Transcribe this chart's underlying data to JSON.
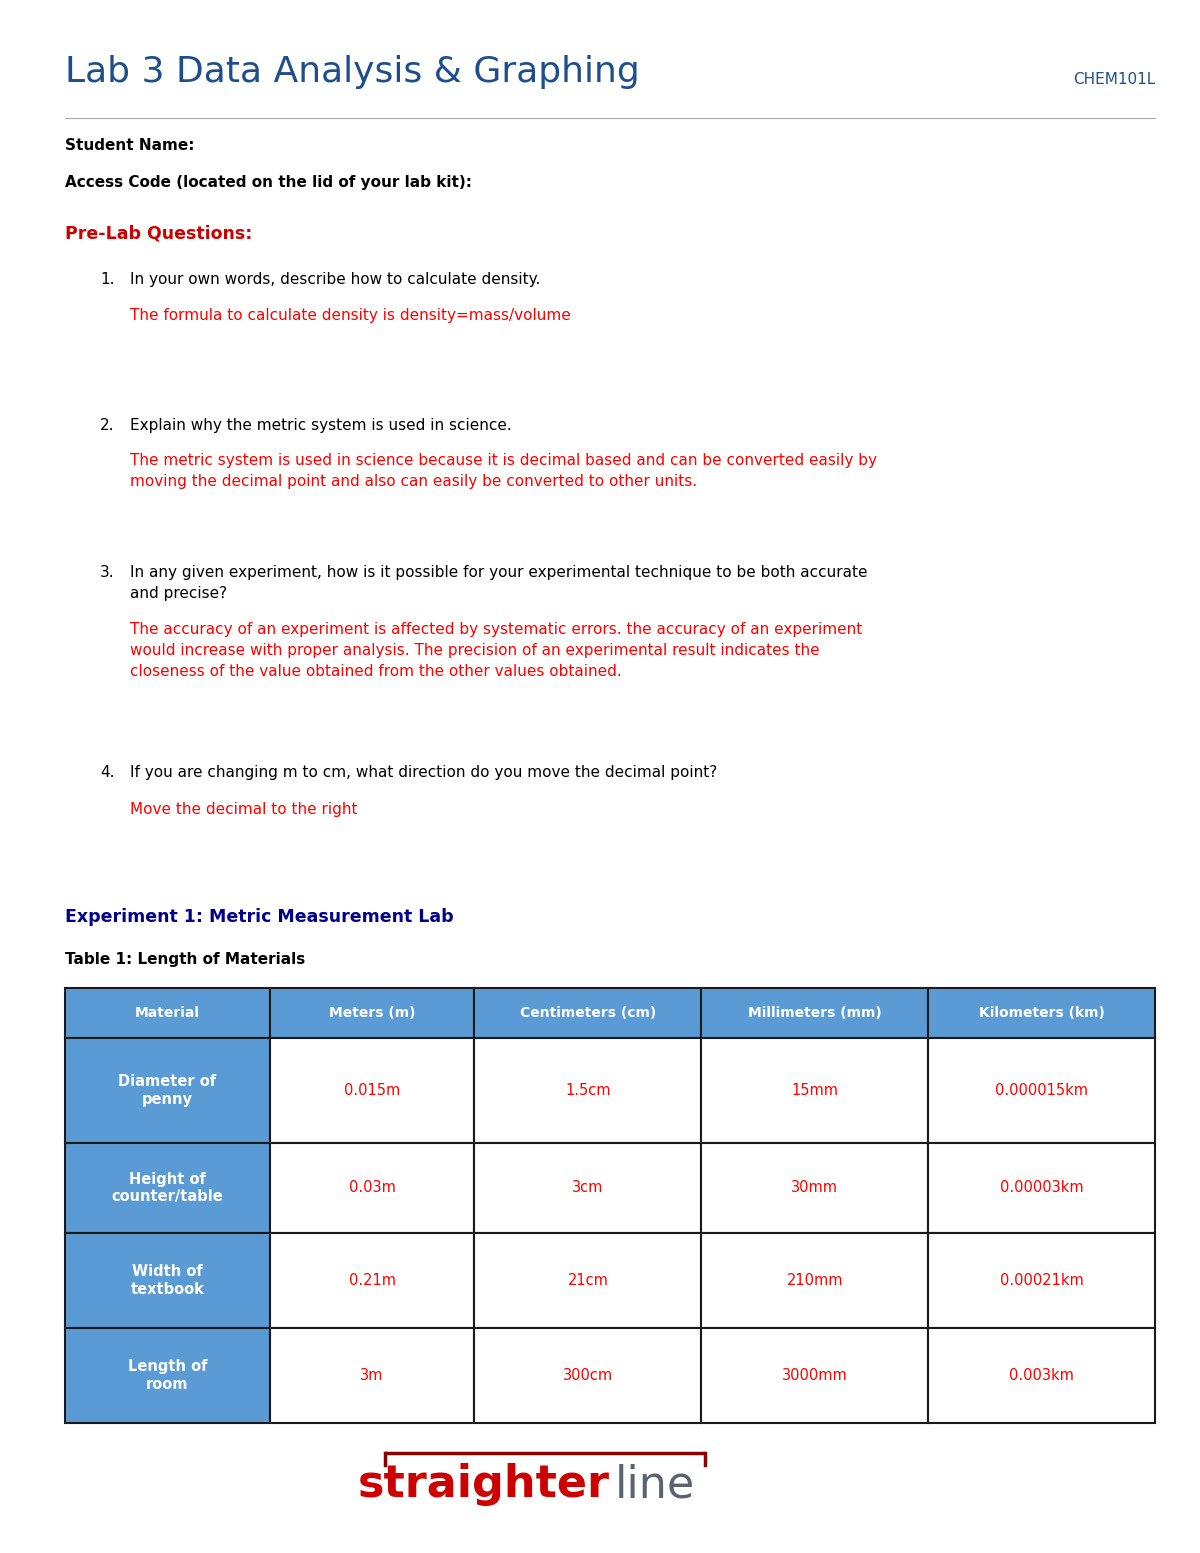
{
  "title": "Lab 3 Data Analysis & Graphing",
  "course_code": "CHEM101L",
  "title_color": "#1F4E8C",
  "course_color": "#1F4E8C",
  "student_name_label": "Student Name:",
  "access_code_label": "Access Code (located on the lid of your lab kit):",
  "prelab_title": "Pre-Lab Questions:",
  "prelab_color": "#CC0000",
  "questions": [
    {
      "number": "1.",
      "question": "In your own words, describe how to calculate density.",
      "answer": "The formula to calculate density is density=mass/volume"
    },
    {
      "number": "2.",
      "question": "Explain why the metric system is used in science.",
      "answer": "The metric system is used in science because it is decimal based and can be converted easily by\nmoving the decimal point and also can easily be converted to other units."
    },
    {
      "number": "3.",
      "question": "In any given experiment, how is it possible for your experimental technique to be both accurate\nand precise?",
      "answer": "The accuracy of an experiment is affected by systematic errors. the accuracy of an experiment\nwould increase with proper analysis. The precision of an experimental result indicates the\ncloseness of the value obtained from the other values obtained."
    },
    {
      "number": "4.",
      "question": "If you are changing m to cm, what direction do you move the decimal point?",
      "answer": "Move the decimal to the right"
    }
  ],
  "experiment_title": "Experiment 1: Metric Measurement Lab",
  "experiment_color": "#00008B",
  "table_title": "Table 1: Length of Materials",
  "table_header_bg": "#5B9BD5",
  "table_header_text": "#FFFFFF",
  "table_row_bg_blue": "#5B9BD5",
  "table_row_bg_white": "#FFFFFF",
  "table_answer_color": "#FF0000",
  "table_border_color": "#1a1a1a",
  "table_headers": [
    "Material",
    "Meters (m)",
    "Centimeters (cm)",
    "Millimeters (mm)",
    "Kilometers (km)"
  ],
  "table_rows": [
    [
      "Diameter of\npenny",
      "0.015m",
      "1.5cm",
      "15mm",
      "0.000015km"
    ],
    [
      "Height of\ncounter/table",
      "0.03m",
      "3cm",
      "30mm",
      "0.00003km"
    ],
    [
      "Width of\ntextbook",
      "0.21m",
      "21cm",
      "210mm",
      "0.00021km"
    ],
    [
      "Length of\nroom",
      "3m",
      "300cm",
      "3000mm",
      "0.003km"
    ]
  ],
  "logo_straighter_color": "#CC0000",
  "logo_line_color": "#8B0000",
  "background_color": "#FFFFFF",
  "body_text_color": "#000000",
  "answer_color": "#FF0000",
  "bold_label_color": "#000000"
}
